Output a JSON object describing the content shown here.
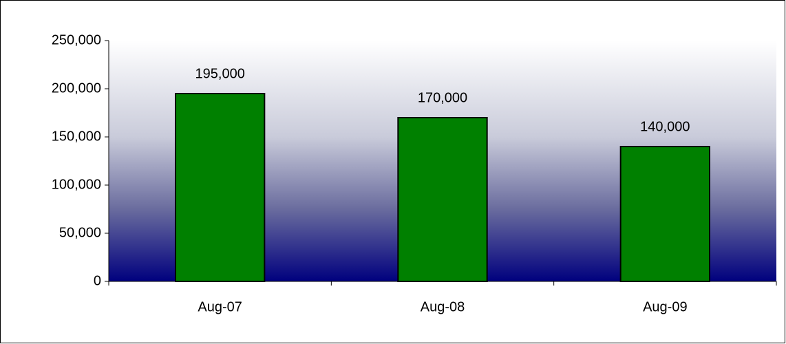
{
  "chart_data": {
    "type": "bar",
    "categories": [
      "Aug-07",
      "Aug-08",
      "Aug-09"
    ],
    "values": [
      195000,
      170000,
      140000
    ],
    "value_labels": [
      "195,000",
      "170,000",
      "140,000"
    ],
    "color": "#008000",
    "ylim": [
      0,
      250000
    ],
    "yticks": [
      0,
      {
        "value": 50000,
        "label": "50,000"
      },
      {
        "value": 100000,
        "label": "100,000"
      },
      {
        "value": 150000,
        "label": "150,000"
      },
      {
        "value": 200000,
        "label": "200,000"
      },
      {
        "value": 250000,
        "label": "250,000"
      }
    ]
  }
}
